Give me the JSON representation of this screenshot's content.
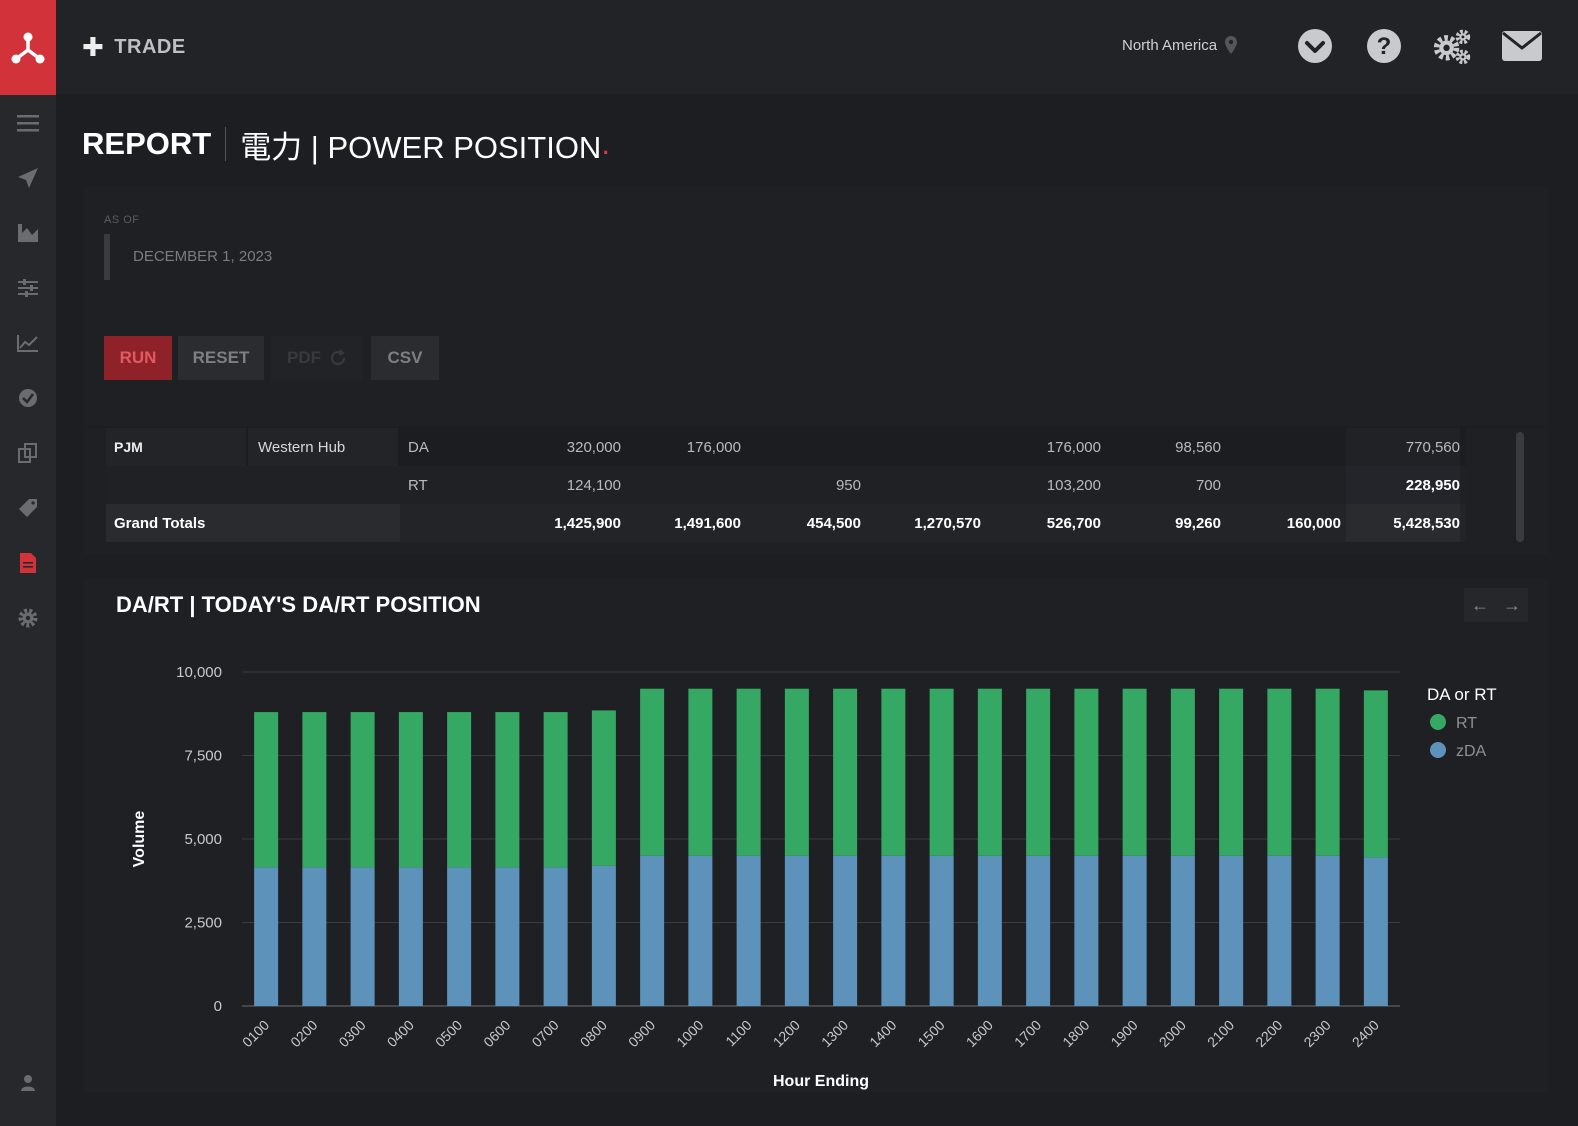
{
  "topbar": {
    "trade_label": "TRADE",
    "region": "North America"
  },
  "page": {
    "title_report": "REPORT",
    "title_main": "電力 | POWER POSITION",
    "title_dot": "."
  },
  "filters": {
    "as_of_label": "AS OF",
    "date": "DECEMBER 1, 2023",
    "run_label": "RUN",
    "reset_label": "RESET",
    "pdf_label": "PDF",
    "csv_label": "CSV"
  },
  "table": {
    "rows": [
      {
        "iso": "PJM",
        "hub": "Western Hub",
        "type": "DA",
        "c1": "320,000",
        "c2": "176,000",
        "c3": "",
        "c4": "",
        "c5": "176,000",
        "c6": "98,560",
        "c7": "",
        "total": "770,560"
      },
      {
        "iso": "",
        "hub": "",
        "type": "RT",
        "c1": "124,100",
        "c2": "",
        "c3": "950",
        "c4": "",
        "c5": "103,200",
        "c6": "700",
        "c7": "",
        "total": "228,950"
      },
      {
        "iso": "Grand Totals",
        "hub": "",
        "type": "",
        "c1": "1,425,900",
        "c2": "1,491,600",
        "c3": "454,500",
        "c4": "1,270,570",
        "c5": "526,700",
        "c6": "99,260",
        "c7": "160,000",
        "total": "5,428,530"
      }
    ]
  },
  "chart_panel": {
    "title": "DA/RT | TODAY'S DA/RT POSITION"
  },
  "colors": {
    "rt": "#35a863",
    "da": "#5d93bb",
    "accent": "#d2333a"
  },
  "chart_data": {
    "type": "bar",
    "stacked": true,
    "title": "DA/RT | TODAY'S DA/RT POSITION",
    "xlabel": "Hour Ending",
    "ylabel": "Volume",
    "ylim": [
      0,
      10000
    ],
    "yticks": [
      "0",
      "2,500",
      "5,000",
      "7,500",
      "10,000"
    ],
    "ytick_values": [
      0,
      2500,
      5000,
      7500,
      10000
    ],
    "legend_title": "DA or RT",
    "legend_position": "top-right",
    "categories": [
      "0100",
      "0200",
      "0300",
      "0400",
      "0500",
      "0600",
      "0700",
      "0800",
      "0900",
      "1000",
      "1100",
      "1200",
      "1300",
      "1400",
      "1500",
      "1600",
      "1700",
      "1800",
      "1900",
      "2000",
      "2100",
      "2200",
      "2300",
      "2400"
    ],
    "series": [
      {
        "name": "zDA",
        "color": "#5d93bb",
        "values": [
          4150,
          4150,
          4150,
          4150,
          4150,
          4150,
          4150,
          4200,
          4500,
          4500,
          4500,
          4500,
          4500,
          4500,
          4500,
          4500,
          4500,
          4500,
          4500,
          4500,
          4500,
          4500,
          4500,
          4450
        ]
      },
      {
        "name": "RT",
        "color": "#35a863",
        "values": [
          4650,
          4650,
          4650,
          4650,
          4650,
          4650,
          4650,
          4650,
          5000,
          5000,
          5000,
          5000,
          5000,
          5000,
          5000,
          5000,
          5000,
          5000,
          5000,
          5000,
          5000,
          5000,
          5000,
          5000
        ]
      }
    ],
    "legend_order": [
      "RT",
      "zDA"
    ]
  }
}
